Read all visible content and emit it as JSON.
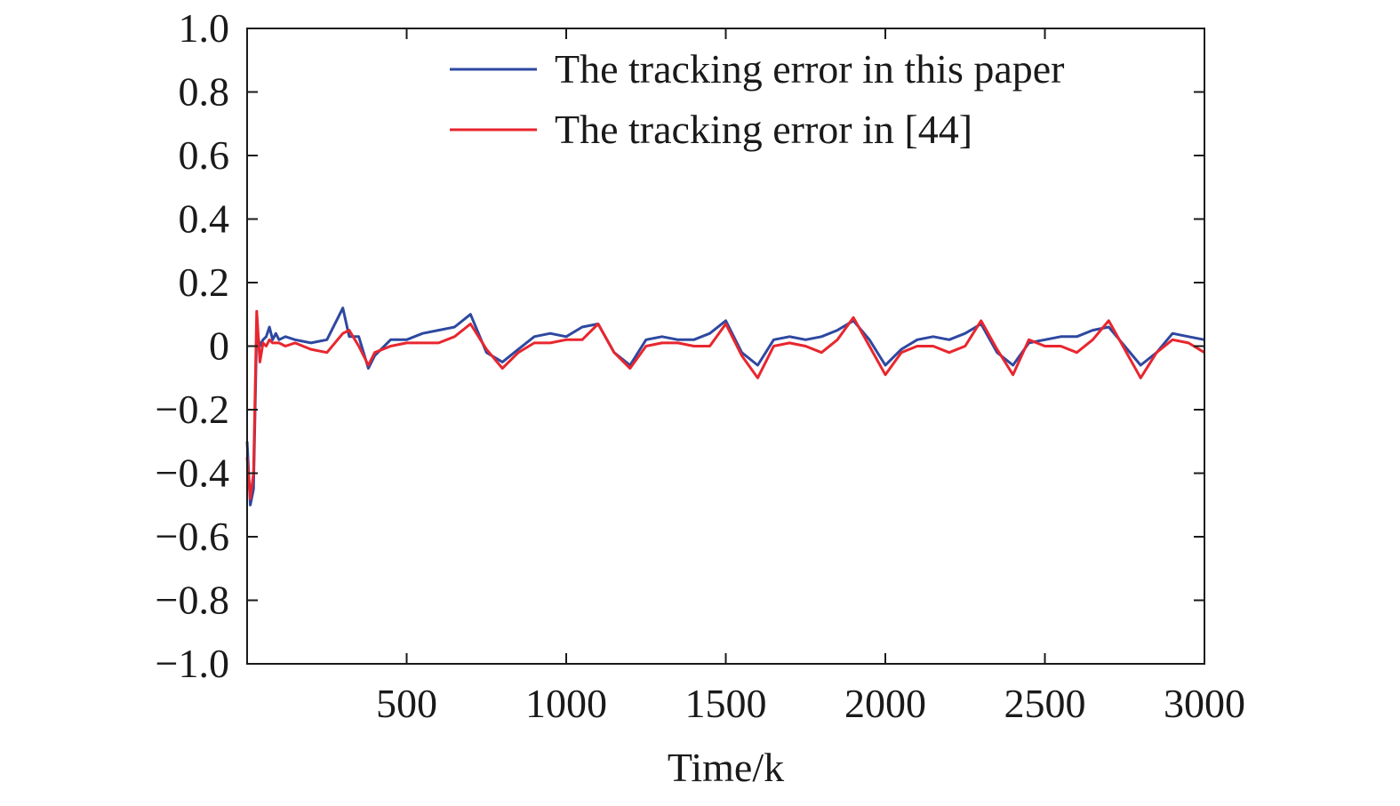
{
  "chart_data": {
    "type": "line",
    "title": "",
    "xlabel": "Time/k",
    "ylabel": "",
    "xlim": [
      0,
      3000
    ],
    "ylim": [
      -1.0,
      1.0
    ],
    "x_ticks": [
      500,
      1000,
      1500,
      2000,
      2500,
      3000
    ],
    "x_tick_labels": [
      "500",
      "1000",
      "1500",
      "2000",
      "2500",
      "3000"
    ],
    "y_ticks": [
      1.0,
      0.8,
      0.6,
      0.4,
      0.2,
      0,
      -0.2,
      -0.4,
      -0.6,
      -0.8,
      -1.0
    ],
    "y_tick_labels": [
      "1.0",
      "0.8",
      "0.6",
      "0.4",
      "0.2",
      "0",
      "−0.2",
      "−0.4",
      "−0.6",
      "−0.8",
      "−1.0"
    ],
    "grid": false,
    "legend_position": "top-right",
    "x": [
      0,
      10,
      20,
      30,
      40,
      50,
      60,
      70,
      80,
      90,
      100,
      120,
      150,
      200,
      250,
      300,
      320,
      350,
      380,
      400,
      450,
      500,
      550,
      600,
      650,
      700,
      750,
      800,
      850,
      900,
      950,
      1000,
      1050,
      1100,
      1150,
      1200,
      1250,
      1300,
      1350,
      1400,
      1450,
      1500,
      1550,
      1600,
      1650,
      1700,
      1750,
      1800,
      1850,
      1900,
      1950,
      2000,
      2050,
      2100,
      2150,
      2200,
      2250,
      2300,
      2350,
      2400,
      2450,
      2500,
      2550,
      2600,
      2650,
      2700,
      2750,
      2800,
      2850,
      2900,
      2950,
      3000
    ],
    "series": [
      {
        "name": "The tracking error in this paper",
        "color": "#2e48a0",
        "values": [
          -0.3,
          -0.5,
          -0.45,
          0.05,
          0.0,
          0.02,
          0.03,
          0.06,
          0.02,
          0.04,
          0.02,
          0.03,
          0.02,
          0.01,
          0.02,
          0.12,
          0.03,
          0.03,
          -0.07,
          -0.03,
          0.02,
          0.02,
          0.04,
          0.05,
          0.06,
          0.1,
          -0.02,
          -0.05,
          -0.01,
          0.03,
          0.04,
          0.03,
          0.06,
          0.07,
          -0.02,
          -0.06,
          0.02,
          0.03,
          0.02,
          0.02,
          0.04,
          0.08,
          -0.02,
          -0.06,
          0.02,
          0.03,
          0.02,
          0.03,
          0.05,
          0.08,
          0.02,
          -0.06,
          -0.01,
          0.02,
          0.03,
          0.02,
          0.04,
          0.07,
          -0.02,
          -0.06,
          0.01,
          0.02,
          0.03,
          0.03,
          0.05,
          0.06,
          0.0,
          -0.06,
          -0.02,
          0.04,
          0.03,
          0.02
        ]
      },
      {
        "name": "The tracking error in [44]",
        "color": "#e8262e",
        "values": [
          -0.35,
          -0.48,
          -0.4,
          0.11,
          -0.05,
          0.01,
          0.0,
          0.02,
          0.01,
          0.01,
          0.01,
          0.0,
          0.01,
          -0.01,
          -0.02,
          0.04,
          0.05,
          0.0,
          -0.06,
          -0.02,
          0.0,
          0.01,
          0.01,
          0.01,
          0.03,
          0.07,
          -0.01,
          -0.07,
          -0.02,
          0.01,
          0.01,
          0.02,
          0.02,
          0.07,
          -0.02,
          -0.07,
          0.0,
          0.01,
          0.01,
          0.0,
          0.0,
          0.07,
          -0.03,
          -0.1,
          0.0,
          0.01,
          0.0,
          -0.02,
          0.02,
          0.09,
          0.0,
          -0.09,
          -0.02,
          0.0,
          0.0,
          -0.02,
          0.0,
          0.08,
          -0.01,
          -0.09,
          0.02,
          0.0,
          0.0,
          -0.02,
          0.02,
          0.08,
          -0.01,
          -0.1,
          -0.02,
          0.02,
          0.01,
          -0.02
        ]
      }
    ]
  }
}
